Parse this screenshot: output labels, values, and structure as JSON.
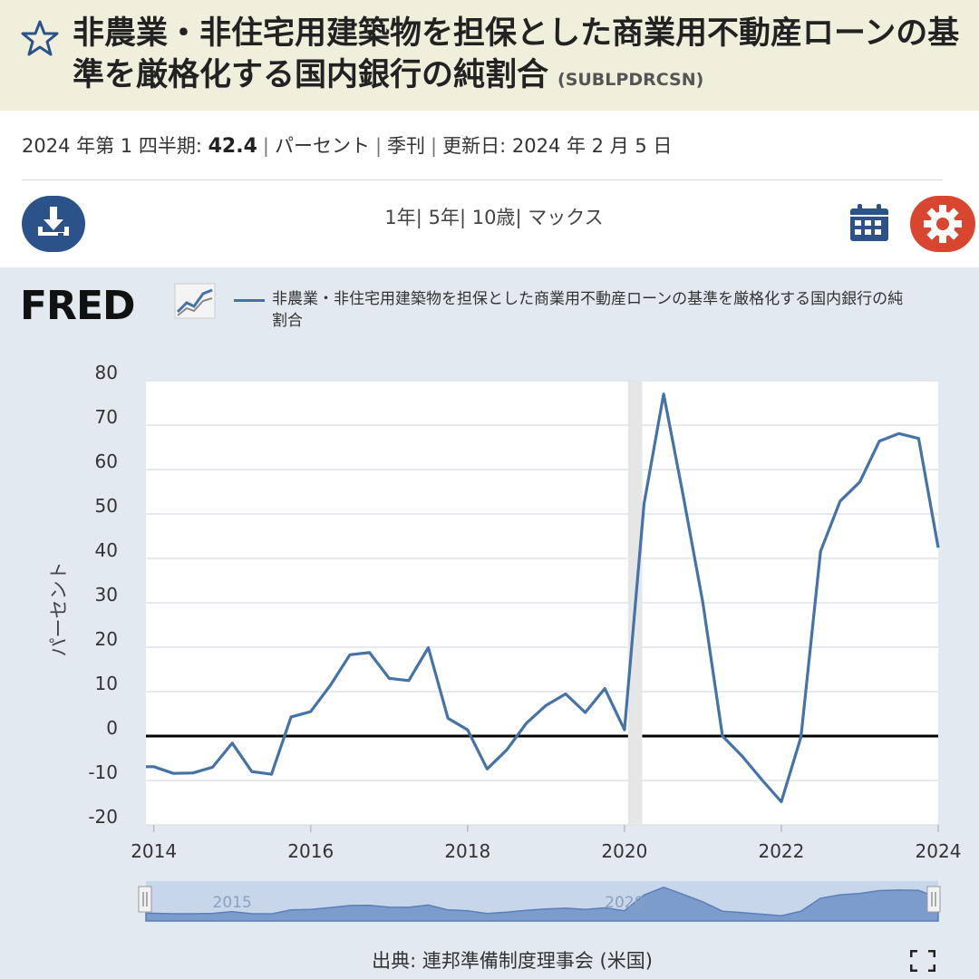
{
  "header": {
    "title": "非農業・非住宅用建築物を担保とした商業用不動産ローンの基準を厳格化する国内銀行の純割合",
    "series_code": "(SUBLPDRCSN)",
    "favorite_icon": "star-icon"
  },
  "meta": {
    "period": "2024 年第 1 四半期:",
    "value": "42.4",
    "units": "パーセント",
    "frequency": "季刊",
    "updated": "更新日: 2024 年 2 月 5 日"
  },
  "toolbar": {
    "download_icon": "download-icon",
    "ranges": [
      "1年",
      "5年",
      "10歳",
      "マックス"
    ],
    "calendar_icon": "calendar-icon",
    "settings_icon": "gear-icon",
    "accent_blue": "#2b5289",
    "accent_red": "#d8462f"
  },
  "chart": {
    "logo": "FRED",
    "legend_label": "非農業・非住宅用建築物を担保とした商業用不動産ローンの基準を厳格化する国内銀行の純割合",
    "source": "出典: 連邦準備制度理事会 (米国)",
    "fullscreen_icon": "fullscreen-icon"
  },
  "chart_data": {
    "type": "line",
    "ylabel": "パーセント",
    "ylim": [
      -20,
      80
    ],
    "yticks": [
      80,
      70,
      60,
      50,
      40,
      30,
      20,
      10,
      0,
      -10,
      -20
    ],
    "xlim": [
      2013.9,
      2024.0
    ],
    "xticks": [
      "2014",
      "2016",
      "2018",
      "2020",
      "2022",
      "2024"
    ],
    "line_color": "#4572a7",
    "recession": [
      2020.0,
      2020.25
    ],
    "navigator_labels": [
      "2015",
      "2020"
    ],
    "series": [
      {
        "name": "非農業・非住宅用建築物を担保とした商業用不動産ローンの基準を厳格化する国内銀行の純割合",
        "x": [
          2013.9,
          2014.0,
          2014.25,
          2014.5,
          2014.75,
          2015.0,
          2015.25,
          2015.5,
          2015.75,
          2016.0,
          2016.25,
          2016.5,
          2016.75,
          2017.0,
          2017.25,
          2017.5,
          2017.75,
          2018.0,
          2018.25,
          2018.5,
          2018.75,
          2019.0,
          2019.25,
          2019.5,
          2019.75,
          2020.0,
          2020.25,
          2020.5,
          2020.75,
          2021.0,
          2021.25,
          2021.5,
          2021.75,
          2022.0,
          2022.25,
          2022.5,
          2022.75,
          2023.0,
          2023.25,
          2023.5,
          2023.75,
          2024.0
        ],
        "y": [
          -6.9,
          -6.9,
          -8.4,
          -8.3,
          -7.0,
          -1.6,
          -8.0,
          -8.6,
          4.3,
          5.5,
          11.4,
          18.3,
          18.8,
          13.0,
          12.5,
          19.9,
          4.0,
          1.4,
          -7.4,
          -3.1,
          2.9,
          6.9,
          9.5,
          5.3,
          10.7,
          1.4,
          52.3,
          77.0,
          54.0,
          30.0,
          0.0,
          -4.5,
          -9.8,
          -14.8,
          -0.2,
          41.6,
          52.9,
          57.2,
          66.4,
          68.1,
          67.0,
          42.4
        ]
      }
    ]
  }
}
